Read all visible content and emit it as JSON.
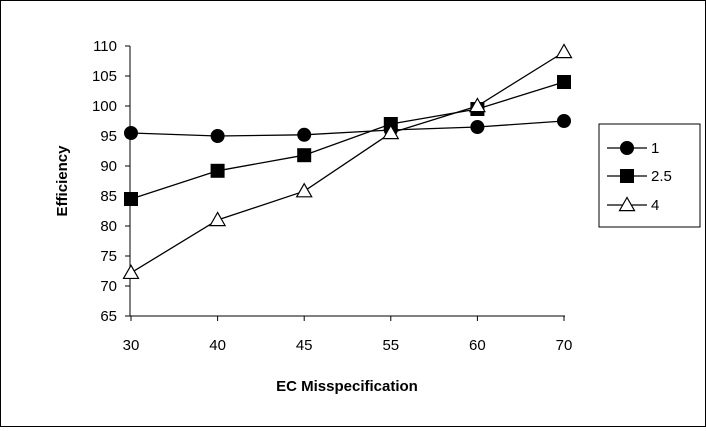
{
  "chart_data": {
    "type": "line",
    "title": "",
    "xlabel": "EC Misspecification",
    "ylabel": "Efficiency",
    "categories": [
      "30",
      "40",
      "45",
      "55",
      "60",
      "70"
    ],
    "ylim": [
      65,
      110
    ],
    "yticks": [
      "65",
      "70",
      "75",
      "80",
      "85",
      "90",
      "95",
      "100",
      "105",
      "110"
    ],
    "grid": false,
    "legend_position": "right",
    "series": [
      {
        "name": "1",
        "marker": "circle-filled",
        "color": "#000000",
        "values": [
          95.5,
          95.0,
          95.2,
          96.0,
          96.5,
          97.5
        ]
      },
      {
        "name": "2.5",
        "marker": "square-filled",
        "color": "#000000",
        "values": [
          84.5,
          89.2,
          91.8,
          97.0,
          99.5,
          104.0
        ]
      },
      {
        "name": "4",
        "marker": "triangle-open",
        "color": "#000000",
        "values": [
          72.2,
          81.0,
          85.8,
          95.5,
          100.0,
          109.0
        ]
      }
    ]
  }
}
